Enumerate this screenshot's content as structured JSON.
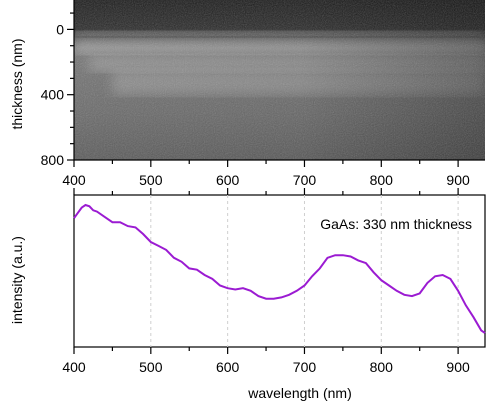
{
  "chart_data": [
    {
      "type": "heatmap",
      "xlabel": "",
      "ylabel": "thickness (nm)",
      "xlim": [
        400,
        935
      ],
      "ylim": [
        800,
        -180
      ],
      "x_ticks": [
        "400",
        "500",
        "600",
        "700",
        "800",
        "900"
      ],
      "y_ticks": [
        "0",
        "400",
        "800"
      ],
      "colormap": "grayscale",
      "bright_bands": [
        {
          "x": [
            400,
            935
          ],
          "y": [
            10,
            40
          ],
          "intensity": 0.85
        },
        {
          "x": [
            400,
            935
          ],
          "y": [
            60,
            150
          ],
          "intensity": 0.55
        },
        {
          "x": [
            420,
            935
          ],
          "y": [
            160,
            260
          ],
          "intensity": 0.45
        },
        {
          "x": [
            450,
            935
          ],
          "y": [
            250,
            400
          ],
          "intensity": 0.4
        }
      ]
    },
    {
      "type": "line",
      "xlabel": "wavelength (nm)",
      "ylabel": "intensity (a.u.)",
      "xlim": [
        400,
        935
      ],
      "ylim": [
        0,
        1
      ],
      "x_ticks": [
        "400",
        "500",
        "600",
        "700",
        "800",
        "900"
      ],
      "grid": "vertical",
      "series": [
        {
          "color": "#9b1bd2",
          "x": [
            400,
            405,
            410,
            415,
            420,
            425,
            430,
            440,
            450,
            460,
            470,
            480,
            490,
            500,
            510,
            520,
            530,
            540,
            550,
            560,
            570,
            580,
            590,
            600,
            610,
            620,
            630,
            640,
            650,
            660,
            670,
            680,
            690,
            700,
            710,
            720,
            730,
            740,
            750,
            760,
            770,
            780,
            790,
            800,
            810,
            820,
            830,
            840,
            850,
            860,
            870,
            880,
            890,
            900,
            910,
            920,
            930,
            935
          ],
          "y": [
            0.9,
            0.94,
            0.98,
            1.0,
            0.99,
            0.96,
            0.95,
            0.91,
            0.87,
            0.87,
            0.84,
            0.83,
            0.78,
            0.72,
            0.69,
            0.66,
            0.6,
            0.57,
            0.52,
            0.51,
            0.47,
            0.44,
            0.39,
            0.37,
            0.36,
            0.37,
            0.35,
            0.31,
            0.29,
            0.29,
            0.3,
            0.32,
            0.35,
            0.39,
            0.46,
            0.52,
            0.6,
            0.62,
            0.62,
            0.61,
            0.58,
            0.56,
            0.49,
            0.43,
            0.39,
            0.35,
            0.32,
            0.31,
            0.33,
            0.41,
            0.46,
            0.47,
            0.44,
            0.35,
            0.24,
            0.15,
            0.05,
            0.03
          ]
        }
      ],
      "annotations": [
        "GaAs: 330 nm thickness"
      ]
    }
  ]
}
